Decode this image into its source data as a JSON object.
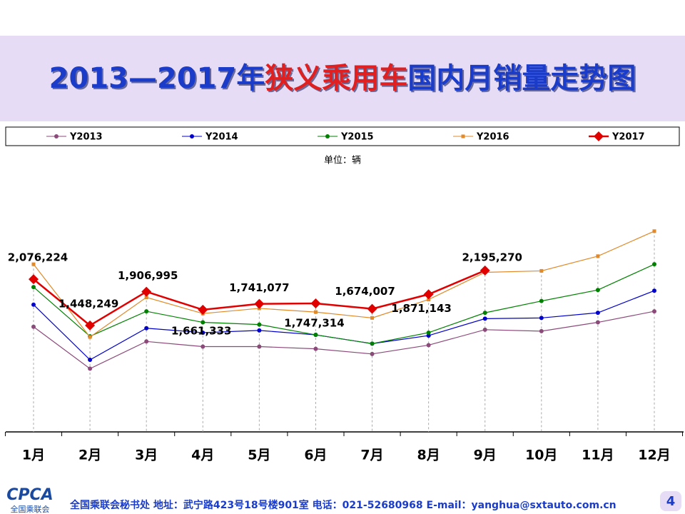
{
  "chart_data": {
    "type": "line",
    "title_parts": [
      "2013—2017年",
      "狭义乘用车",
      "国内月销量走势图"
    ],
    "unit": "单位：辆",
    "categories": [
      "1月",
      "2月",
      "3月",
      "4月",
      "5月",
      "6月",
      "7月",
      "8月",
      "9月",
      "10月",
      "11月",
      "12月"
    ],
    "ylim": [
      0,
      3000000
    ],
    "series": [
      {
        "name": "Y2013",
        "color": "#8b4a7a",
        "marker": "circle",
        "values": [
          1430000,
          860000,
          1230000,
          1160000,
          1160000,
          1130000,
          1060000,
          1180000,
          1390000,
          1370000,
          1490000,
          1640000
        ]
      },
      {
        "name": "Y2014",
        "color": "#0000cc",
        "marker": "circle",
        "values": [
          1730000,
          980000,
          1410000,
          1350000,
          1380000,
          1320000,
          1200000,
          1310000,
          1540000,
          1550000,
          1620000,
          1920000
        ]
      },
      {
        "name": "Y2015",
        "color": "#008000",
        "marker": "circle",
        "values": [
          1970000,
          1300000,
          1640000,
          1490000,
          1460000,
          1320000,
          1200000,
          1350000,
          1620000,
          1780000,
          1930000,
          2280000
        ]
      },
      {
        "name": "Y2016",
        "color": "#e08a2a",
        "marker": "square",
        "values": [
          2280000,
          1290000,
          1830000,
          1610000,
          1680000,
          1630000,
          1550000,
          1800000,
          2170000,
          2190000,
          2390000,
          2730000
        ]
      },
      {
        "name": "Y2017",
        "color": "#e00000",
        "marker": "diamond",
        "values": [
          2076224,
          1448249,
          1906995,
          1661333,
          1741077,
          1747314,
          1674007,
          1871143,
          2195270,
          null,
          null,
          null
        ],
        "value_labels": [
          "2,076,224",
          "1,448,249",
          "1,906,995",
          "1,661,333",
          "1,741,077",
          "1,747,314",
          "1,674,007",
          "1,871,143",
          "2,195,270",
          null,
          null,
          null
        ]
      }
    ]
  },
  "footer": {
    "logo": "CPCA",
    "logo_sub": "全国乘联会",
    "text": "全国乘联会秘书处  地址：武宁路423号18号楼901室    电话：021-52680968   E-mail：yanghua@sxtauto.com.cn",
    "page": "4"
  }
}
